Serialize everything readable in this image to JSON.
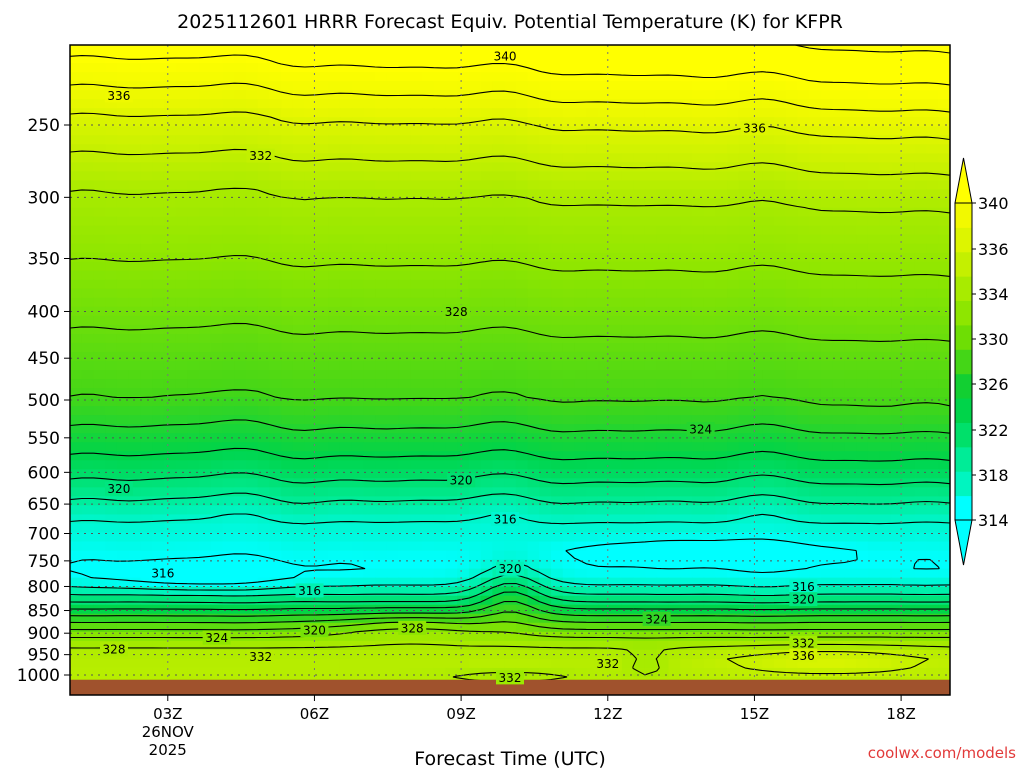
{
  "chart_data": {
    "type": "heatmap",
    "title": "2025112601 HRRR Forecast Equiv. Potential Temperature (K) for KFPR",
    "xlabel": "Forecast Time (UTC)",
    "ylabel": "",
    "y_axis": {
      "scale": "log",
      "reversed": true,
      "range": [
        200,
        1030
      ],
      "ticks": [
        250,
        300,
        350,
        400,
        450,
        500,
        550,
        600,
        650,
        700,
        750,
        800,
        850,
        900,
        950,
        1000
      ]
    },
    "x_axis": {
      "range_hours": [
        1,
        19
      ],
      "ticks": [
        {
          "hour": 3,
          "label": "03Z",
          "sub1": "26NOV",
          "sub2": "2025"
        },
        {
          "hour": 6,
          "label": "06Z"
        },
        {
          "hour": 9,
          "label": "09Z"
        },
        {
          "hour": 12,
          "label": "12Z"
        },
        {
          "hour": 15,
          "label": "15Z"
        },
        {
          "hour": 18,
          "label": "18Z"
        }
      ]
    },
    "grid": true,
    "colorbar": {
      "location": "right",
      "levels": [
        314,
        316,
        318,
        320,
        322,
        324,
        326,
        328,
        330,
        332,
        334,
        336,
        338,
        340
      ],
      "labels": [
        "314",
        "318",
        "322",
        "326",
        "330",
        "334",
        "336",
        "340"
      ],
      "extend": "both",
      "colors": [
        "#00ffff",
        "#00f5c0",
        "#00ec97",
        "#00e06a",
        "#00d44a",
        "#12cf32",
        "#44d617",
        "#6ede04",
        "#8ee600",
        "#a8eb00",
        "#c4f000",
        "#ddf500",
        "#f2f900",
        "#ffff00"
      ]
    },
    "contour_labels": [
      {
        "value": "340",
        "hour": 9.9,
        "p": 210
      },
      {
        "value": "336",
        "hour": 2.0,
        "p": 232
      },
      {
        "value": "336",
        "hour": 15.0,
        "p": 252
      },
      {
        "value": "332",
        "hour": 4.9,
        "p": 270
      },
      {
        "value": "328",
        "hour": 8.9,
        "p": 400
      },
      {
        "value": "324",
        "hour": 13.9,
        "p": 538
      },
      {
        "value": "320",
        "hour": 2.0,
        "p": 625
      },
      {
        "value": "320",
        "hour": 9.0,
        "p": 612
      },
      {
        "value": "316",
        "hour": 9.9,
        "p": 675
      },
      {
        "value": "316",
        "hour": 2.9,
        "p": 773
      },
      {
        "value": "316",
        "hour": 5.9,
        "p": 808
      },
      {
        "value": "320",
        "hour": 10.0,
        "p": 765
      },
      {
        "value": "316",
        "hour": 16.0,
        "p": 800
      },
      {
        "value": "320",
        "hour": 16.0,
        "p": 826
      },
      {
        "value": "324",
        "hour": 13.0,
        "p": 868
      },
      {
        "value": "320",
        "hour": 6.0,
        "p": 893
      },
      {
        "value": "328",
        "hour": 8.0,
        "p": 888
      },
      {
        "value": "324",
        "hour": 4.0,
        "p": 910
      },
      {
        "value": "328",
        "hour": 1.9,
        "p": 937
      },
      {
        "value": "332",
        "hour": 4.9,
        "p": 955
      },
      {
        "value": "332",
        "hour": 12.0,
        "p": 972
      },
      {
        "value": "332",
        "hour": 16.0,
        "p": 922
      },
      {
        "value": "336",
        "hour": 16.0,
        "p": 952
      },
      {
        "value": "332",
        "hour": 10.0,
        "p": 1006
      }
    ],
    "terrain": {
      "surface_p": 1012,
      "color": "#a0522d"
    }
  },
  "credit": "coolwx.com/models"
}
